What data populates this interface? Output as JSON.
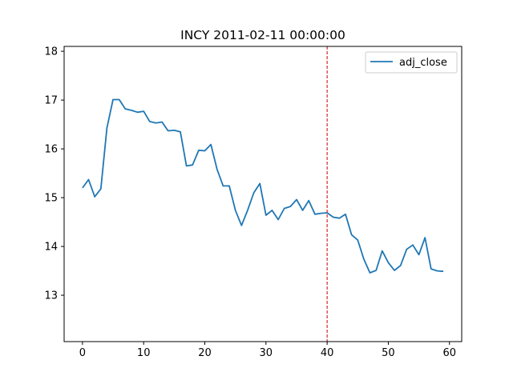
{
  "chart_data": {
    "type": "line",
    "title": "INCY 2011-02-11 00:00:00",
    "xlabel": "",
    "ylabel": "",
    "xlim": [
      -3,
      62
    ],
    "ylim": [
      12.05,
      18.1
    ],
    "xticks": [
      0,
      10,
      20,
      30,
      40,
      50,
      60
    ],
    "yticks": [
      13,
      14,
      15,
      16,
      17,
      18
    ],
    "grid": false,
    "legend_position": "top-right",
    "vline": {
      "x": 40,
      "color": "#d62728",
      "style": "dashed"
    },
    "series": [
      {
        "name": "adj_close",
        "color": "#1f77b4",
        "x": [
          0,
          1,
          2,
          3,
          4,
          5,
          6,
          7,
          8,
          9,
          10,
          11,
          12,
          13,
          14,
          15,
          16,
          17,
          18,
          19,
          20,
          21,
          22,
          23,
          24,
          25,
          26,
          27,
          28,
          29,
          30,
          31,
          32,
          33,
          34,
          35,
          36,
          37,
          38,
          39,
          40,
          41,
          42,
          43,
          44,
          45,
          46,
          47,
          48,
          49,
          50,
          51,
          52,
          53,
          54,
          55,
          56,
          57,
          58,
          59
        ],
        "values": [
          15.2,
          15.37,
          15.02,
          15.18,
          16.43,
          17.01,
          17.01,
          16.82,
          16.79,
          16.75,
          16.77,
          16.56,
          16.53,
          16.55,
          16.37,
          16.38,
          16.35,
          15.65,
          15.67,
          15.97,
          15.96,
          16.09,
          15.58,
          15.24,
          15.24,
          14.74,
          14.43,
          14.74,
          15.1,
          15.29,
          14.64,
          14.74,
          14.55,
          14.78,
          14.82,
          14.96,
          14.74,
          14.94,
          14.66,
          14.68,
          14.69,
          14.6,
          14.58,
          14.66,
          14.24,
          14.13,
          13.74,
          13.46,
          13.51,
          13.91,
          13.67,
          13.51,
          13.61,
          13.94,
          14.03,
          13.83,
          14.18,
          13.54,
          13.5,
          13.49
        ]
      }
    ]
  }
}
